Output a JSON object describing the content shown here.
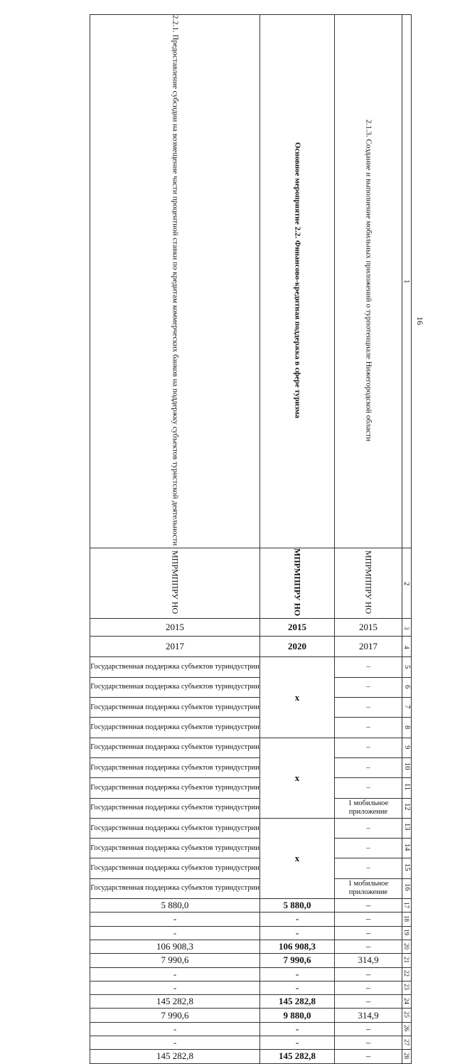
{
  "page_number": "16",
  "header": {
    "col_numbers": [
      "1",
      "2"
    ],
    "row1": [
      "2.2.1. Предоставление субсидии на возмещение части процентной ставки по кредитам коммерческих банков на поддержку субъектов туристской деятельности",
      "Основное мероприятие 2.2. Финансово-кредитная поддержка в сфере туризма",
      "2.1.3. Создание и выполнение мобильных приложений о турпотенциале Нижегородской области"
    ],
    "row2": [
      "МПРМППРУ НО",
      "МПРМППРУ НО",
      "МПРМППРУ НО"
    ]
  },
  "years": [
    {
      "num": "3",
      "cells": [
        "2015",
        "2015",
        "2015"
      ]
    },
    {
      "num": "4",
      "cells": [
        "2017",
        "2020",
        "2017"
      ]
    }
  ],
  "indicator_rows": [
    {
      "num": "5",
      "a": "Государственная поддержка субъектов туриндустрии",
      "c": "–"
    },
    {
      "num": "6",
      "a": "Государственная поддержка субъектов туриндустрии",
      "c": "–"
    },
    {
      "num": "7",
      "a": "Государственная поддержка субъектов туриндустрии",
      "c": "–"
    },
    {
      "num": "8",
      "a": "Государственная поддержка субъектов туриндустрии",
      "c": "–"
    },
    {
      "num": "9",
      "a": "Государственная поддержка субъектов туриндустрии",
      "c": "–"
    },
    {
      "num": "10",
      "a": "Государственная поддержка субъектов туриндустрии",
      "c": "–"
    },
    {
      "num": "11",
      "a": "Государственная поддержка субъектов туриндустрии",
      "c": "–"
    },
    {
      "num": "12",
      "a": "Государственная поддержка субъектов туриндустрии",
      "c": "1 мобильное приложение"
    },
    {
      "num": "13",
      "a": "Государственная поддержка субъектов туриндустрии",
      "c": "–"
    },
    {
      "num": "14",
      "a": "Государственная поддержка субъектов туриндустрии",
      "c": "–"
    },
    {
      "num": "15",
      "a": "Государственная поддержка субъектов туриндустрии",
      "c": "–"
    },
    {
      "num": "16",
      "a": "Государственная поддержка субъектов туриндустрии",
      "c": "1 мобильное приложение"
    }
  ],
  "merged_mark": "x",
  "value_rows": [
    {
      "num": "17",
      "cells": [
        "5 880,0",
        "5 880,0",
        "–"
      ]
    },
    {
      "num": "18",
      "cells": [
        "-",
        "-",
        "–"
      ]
    },
    {
      "num": "19",
      "cells": [
        "-",
        "-",
        "–"
      ]
    },
    {
      "num": "20",
      "cells": [
        "106 908,3",
        "106 908,3",
        "–"
      ]
    },
    {
      "num": "21",
      "cells": [
        "7 990,6",
        "7 990,6",
        "314,9"
      ]
    },
    {
      "num": "22",
      "cells": [
        "-",
        "-",
        "–"
      ]
    },
    {
      "num": "23",
      "cells": [
        "-",
        "-",
        "–"
      ]
    },
    {
      "num": "24",
      "cells": [
        "145 282,8",
        "145 282,8",
        "–"
      ]
    },
    {
      "num": "25",
      "cells": [
        "7 990,6",
        "9 880,0",
        "314,9"
      ]
    },
    {
      "num": "26",
      "cells": [
        "-",
        "-",
        "–"
      ]
    },
    {
      "num": "27",
      "cells": [
        "-",
        "-",
        "–"
      ]
    },
    {
      "num": "28",
      "cells": [
        "145 282,8",
        "145 282,8",
        "–"
      ]
    }
  ]
}
